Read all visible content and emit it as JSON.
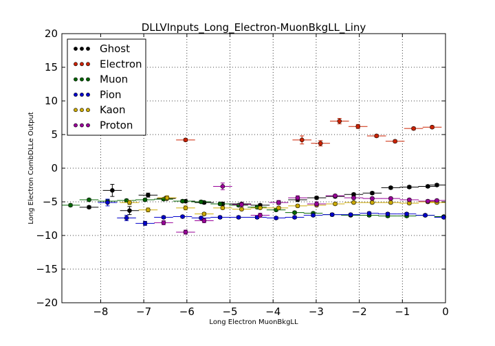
{
  "chart_data": {
    "type": "scatter",
    "title": "DLLVInputs_Long_Electron-MuonBkgLL_Liny",
    "xlabel": "Long Electron MuonBkgLL",
    "ylabel": "Long Electron CombDLLe Output",
    "xlim": [
      -8.9,
      0
    ],
    "ylim": [
      -20,
      20
    ],
    "xticks": [
      -8,
      -7,
      -6,
      -5,
      -4,
      -3,
      -2,
      -1,
      0
    ],
    "yticks": [
      -20,
      -15,
      -10,
      -5,
      0,
      5,
      10,
      15,
      20
    ],
    "xtick_labels": [
      "−8",
      "−7",
      "−6",
      "−5",
      "−4",
      "−3",
      "−2",
      "−1",
      "0"
    ],
    "ytick_labels": [
      "−20",
      "−15",
      "−10",
      "−5",
      "0",
      "5",
      "10",
      "15",
      "20"
    ],
    "grid": true,
    "legend_position": "top-left",
    "bin_half_width": 0.22,
    "series": [
      {
        "name": "Ghost",
        "color": "#000000",
        "points": [
          [
            -8.27,
            -5.8,
            0.2
          ],
          [
            -7.73,
            -3.3,
            0.9
          ],
          [
            -7.33,
            -6.3,
            0.6
          ],
          [
            -6.9,
            -4.0,
            0.3
          ],
          [
            -6.48,
            -4.5,
            0.3
          ],
          [
            -6.03,
            -4.9,
            0.2
          ],
          [
            -5.6,
            -5.1,
            0.2
          ],
          [
            -5.17,
            -5.3,
            0.2
          ],
          [
            -4.73,
            -5.3,
            0.2
          ],
          [
            -4.3,
            -5.5,
            0.2
          ],
          [
            -3.87,
            -5.1,
            0.2
          ],
          [
            -3.43,
            -4.7,
            0.2
          ],
          [
            -2.99,
            -4.4,
            0.2
          ],
          [
            -2.56,
            -4.2,
            0.2
          ],
          [
            -2.13,
            -3.9,
            0.2
          ],
          [
            -1.7,
            -3.7,
            0.2
          ],
          [
            -1.27,
            -2.9,
            0.2
          ],
          [
            -0.84,
            -2.8,
            0.2
          ],
          [
            -0.41,
            -2.7,
            0.2
          ],
          [
            -0.2,
            -2.5,
            0.2
          ]
        ]
      },
      {
        "name": "Electron",
        "color": "#cc2200",
        "points": [
          [
            -6.03,
            4.2,
            0.2
          ],
          [
            -3.33,
            4.2,
            0.6
          ],
          [
            -2.9,
            3.7,
            0.4
          ],
          [
            -2.46,
            7.0,
            0.4
          ],
          [
            -2.03,
            6.2,
            0.3
          ],
          [
            -1.6,
            4.8,
            0.2
          ],
          [
            -1.17,
            4.0,
            0.2
          ],
          [
            -0.74,
            5.9,
            0.2
          ],
          [
            -0.31,
            6.1,
            0.2
          ]
        ]
      },
      {
        "name": "Muon",
        "color": "#006400",
        "points": [
          [
            -8.7,
            -5.5,
            0.2
          ],
          [
            -8.27,
            -4.7,
            0.2
          ],
          [
            -7.84,
            -4.9,
            0.2
          ],
          [
            -7.4,
            -4.8,
            0.2
          ],
          [
            -6.97,
            -4.7,
            0.2
          ],
          [
            -6.54,
            -4.6,
            0.2
          ],
          [
            -6.1,
            -4.9,
            0.2
          ],
          [
            -5.67,
            -5.0,
            0.2
          ],
          [
            -5.23,
            -5.3,
            0.2
          ],
          [
            -4.8,
            -5.5,
            0.2
          ],
          [
            -4.37,
            -5.8,
            0.2
          ],
          [
            -3.93,
            -6.2,
            0.2
          ],
          [
            -3.5,
            -6.6,
            0.2
          ],
          [
            -3.07,
            -6.7,
            0.2
          ],
          [
            -2.63,
            -6.9,
            0.2
          ],
          [
            -2.2,
            -7.0,
            0.2
          ],
          [
            -1.77,
            -7.0,
            0.2
          ],
          [
            -1.34,
            -7.1,
            0.2
          ],
          [
            -0.9,
            -7.1,
            0.2
          ],
          [
            -0.47,
            -7.0,
            0.2
          ],
          [
            -0.04,
            -7.2,
            0.2
          ]
        ]
      },
      {
        "name": "Pion",
        "color": "#0000cc",
        "points": [
          [
            -7.84,
            -5.1,
            0.5
          ],
          [
            -7.4,
            -7.4,
            0.4
          ],
          [
            -6.97,
            -8.2,
            0.3
          ],
          [
            -6.54,
            -7.3,
            0.2
          ],
          [
            -6.1,
            -7.2,
            0.2
          ],
          [
            -5.67,
            -7.4,
            0.2
          ],
          [
            -5.23,
            -7.3,
            0.2
          ],
          [
            -4.8,
            -7.3,
            0.2
          ],
          [
            -4.37,
            -7.3,
            0.2
          ],
          [
            -3.93,
            -7.4,
            0.2
          ],
          [
            -3.5,
            -7.3,
            0.2
          ],
          [
            -3.07,
            -7.0,
            0.2
          ],
          [
            -2.63,
            -6.9,
            0.2
          ],
          [
            -2.2,
            -6.9,
            0.2
          ],
          [
            -1.77,
            -6.7,
            0.2
          ],
          [
            -1.34,
            -6.8,
            0.2
          ],
          [
            -0.9,
            -6.8,
            0.2
          ],
          [
            -0.47,
            -7.0,
            0.2
          ],
          [
            -0.04,
            -7.3,
            0.2
          ]
        ]
      },
      {
        "name": "Kaon",
        "color": "#ccaa00",
        "points": [
          [
            -7.33,
            -5.1,
            0.3
          ],
          [
            -6.9,
            -6.2,
            0.3
          ],
          [
            -6.46,
            -4.4,
            0.3
          ],
          [
            -6.03,
            -5.9,
            0.3
          ],
          [
            -5.6,
            -6.8,
            0.2
          ],
          [
            -5.17,
            -5.9,
            0.2
          ],
          [
            -4.73,
            -6.1,
            0.2
          ],
          [
            -4.3,
            -5.9,
            0.2
          ],
          [
            -3.87,
            -5.9,
            0.2
          ],
          [
            -3.43,
            -5.6,
            0.2
          ],
          [
            -2.99,
            -5.5,
            0.2
          ],
          [
            -2.56,
            -5.3,
            0.2
          ],
          [
            -2.13,
            -5.1,
            0.2
          ],
          [
            -1.7,
            -5.1,
            0.2
          ],
          [
            -1.27,
            -5.1,
            0.2
          ],
          [
            -0.84,
            -5.2,
            0.2
          ],
          [
            -0.41,
            -5.0,
            0.2
          ],
          [
            -0.2,
            -5.1,
            0.2
          ]
        ]
      },
      {
        "name": "Proton",
        "color": "#990099",
        "points": [
          [
            -6.54,
            -8.1,
            0.3
          ],
          [
            -6.03,
            -9.5,
            0.3
          ],
          [
            -5.6,
            -7.8,
            0.3
          ],
          [
            -5.17,
            -2.7,
            0.5
          ],
          [
            -4.73,
            -5.4,
            0.3
          ],
          [
            -4.3,
            -7.0,
            0.3
          ],
          [
            -3.87,
            -5.1,
            0.3
          ],
          [
            -3.43,
            -4.4,
            0.3
          ],
          [
            -2.99,
            -5.3,
            0.3
          ],
          [
            -2.56,
            -4.1,
            0.2
          ],
          [
            -2.13,
            -4.4,
            0.2
          ],
          [
            -1.7,
            -4.5,
            0.2
          ],
          [
            -1.27,
            -4.5,
            0.2
          ],
          [
            -0.84,
            -4.7,
            0.2
          ],
          [
            -0.41,
            -4.9,
            0.2
          ],
          [
            -0.2,
            -4.8,
            0.2
          ]
        ]
      }
    ]
  }
}
